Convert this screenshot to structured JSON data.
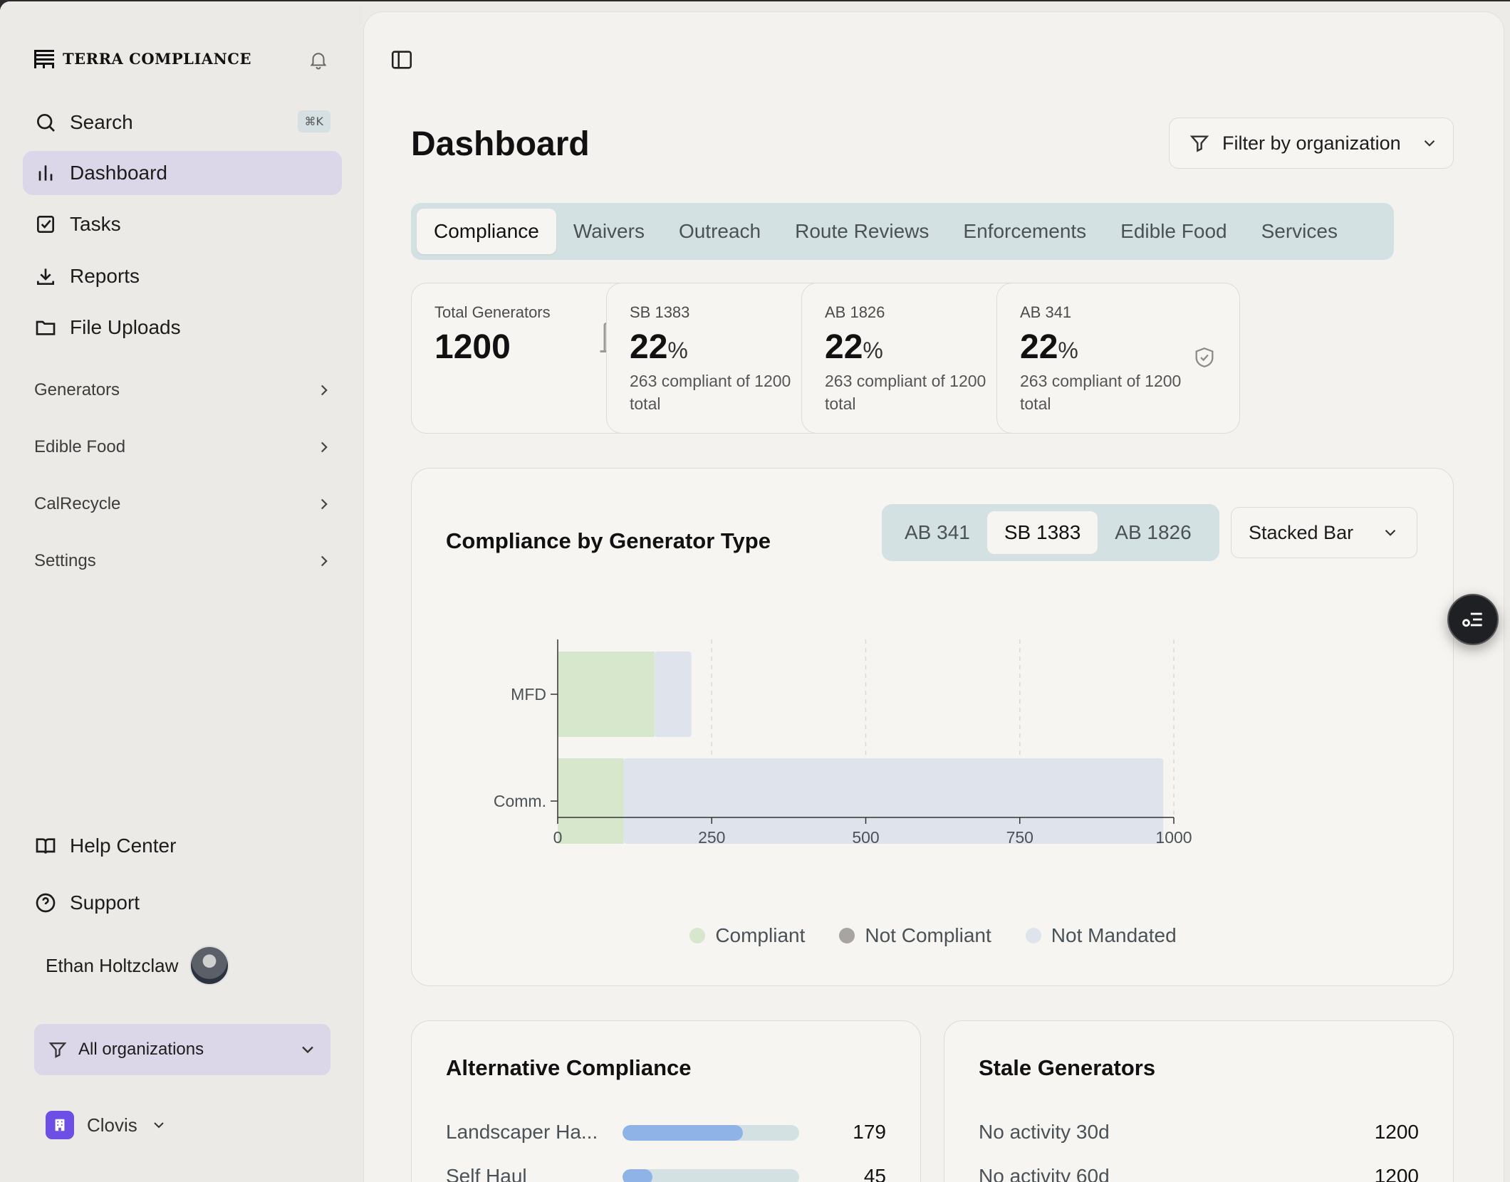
{
  "brand": {
    "name": "TERRA COMPLIANCE"
  },
  "sidebar": {
    "search": {
      "label": "Search",
      "shortcut": "⌘K"
    },
    "items": [
      {
        "label": "Dashboard",
        "icon": "bar-chart-icon",
        "active": true
      },
      {
        "label": "Tasks",
        "icon": "checkbox-icon"
      },
      {
        "label": "Reports",
        "icon": "download-icon"
      },
      {
        "label": "File Uploads",
        "icon": "folder-icon"
      }
    ],
    "groups": [
      "Generators",
      "Edible Food",
      "CalRecycle",
      "Settings"
    ],
    "footer_items": [
      {
        "label": "Help Center",
        "icon": "book-icon"
      },
      {
        "label": "Support",
        "icon": "question-icon"
      }
    ],
    "user": {
      "name": "Ethan Holtzclaw"
    },
    "org_select": {
      "value": "All organizations"
    },
    "city": {
      "name": "Clovis"
    }
  },
  "main": {
    "title": "Dashboard",
    "filter": {
      "label": "Filter by organization"
    },
    "tabs": [
      "Compliance",
      "Waivers",
      "Outreach",
      "Route Reviews",
      "Enforcements",
      "Edible Food",
      "Services"
    ],
    "active_tab": "Compliance",
    "stats": [
      {
        "label": "Total Generators",
        "value": "1200"
      },
      {
        "label": "SB 1383",
        "value": "22",
        "unit": "%",
        "sub": "263 compliant of 1200 total"
      },
      {
        "label": "AB 1826",
        "value": "22",
        "unit": "%",
        "sub": "263 compliant of 1200 total"
      },
      {
        "label": "AB 341",
        "value": "22",
        "unit": "%",
        "sub": "263 compliant of 1200 total"
      }
    ],
    "chart_card": {
      "title": "Compliance by Generator Type",
      "segments": [
        "AB 341",
        "SB 1383",
        "AB 1826"
      ],
      "active_segment": "SB 1383",
      "chart_type_select": "Stacked Bar"
    },
    "alt_compliance": {
      "title": "Alternative Compliance",
      "rows": [
        {
          "label": "Landscaper Ha...",
          "value": "179",
          "fraction": 0.68
        },
        {
          "label": "Self Haul",
          "value": "45",
          "fraction": 0.17
        }
      ]
    },
    "stale": {
      "title": "Stale Generators",
      "rows": [
        {
          "label": "No activity 30d",
          "value": "1200"
        },
        {
          "label": "No activity 60d",
          "value": "1200"
        }
      ]
    }
  },
  "colors": {
    "compliant": "#d6e7cb",
    "not_compliant": "#a8a4a2",
    "not_mandated": "#dfe4ec",
    "accent_lavender": "#dcd7e8",
    "tab_bg": "#d4e1e3"
  },
  "chart_data": {
    "type": "bar",
    "orientation": "horizontal",
    "stacked": true,
    "categories": [
      "MFD",
      "Comm."
    ],
    "series": [
      {
        "name": "Compliant",
        "values": [
          157,
          107
        ]
      },
      {
        "name": "Not Compliant",
        "values": [
          0,
          0
        ]
      },
      {
        "name": "Not Mandated",
        "values": [
          60,
          876
        ]
      }
    ],
    "xlim": [
      0,
      1000
    ],
    "xticks": [
      0,
      250,
      500,
      750,
      1000
    ],
    "grid": "vertical dashed",
    "legend": "bottom-center"
  }
}
